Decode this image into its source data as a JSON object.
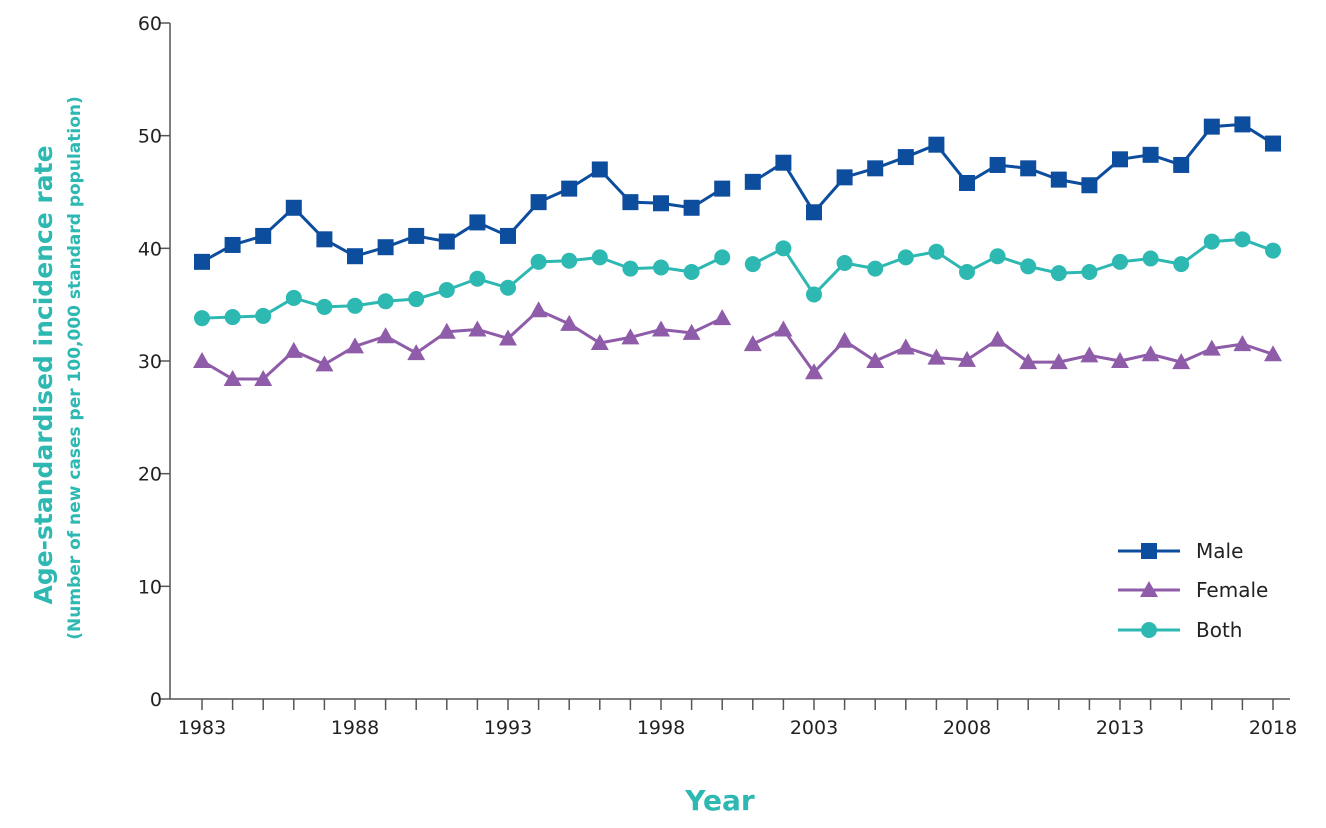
{
  "chart_data": {
    "type": "line",
    "xlabel": "Year",
    "ylabel": "Age-standardised incidence rate",
    "ylabel_sub": "(Number of new cases per 100,000 standard population)",
    "ylim": [
      0,
      60
    ],
    "yticks": [
      0,
      10,
      20,
      30,
      40,
      50,
      60
    ],
    "xlim": [
      1983,
      2018
    ],
    "xtick_labels": [
      1983,
      1988,
      1993,
      1998,
      2003,
      2008,
      2013,
      2018
    ],
    "grid": false,
    "legend_position": "bottom-right",
    "x": [
      1983,
      1984,
      1985,
      1986,
      1987,
      1988,
      1989,
      1990,
      1991,
      1992,
      1993,
      1994,
      1995,
      1996,
      1997,
      1998,
      1999,
      2000,
      2001,
      2002,
      2003,
      2004,
      2005,
      2006,
      2007,
      2008,
      2009,
      2010,
      2011,
      2012,
      2013,
      2014,
      2015,
      2016,
      2017,
      2018
    ],
    "series": [
      {
        "name": "Male",
        "marker": "square",
        "color": "#0d4d9e",
        "values": [
          38.8,
          40.3,
          41.1,
          43.6,
          40.8,
          39.3,
          40.1,
          41.1,
          40.6,
          42.3,
          41.1,
          44.1,
          45.3,
          47.0,
          44.1,
          44.0,
          43.6,
          45.3,
          45.9,
          47.6,
          43.2,
          46.3,
          47.1,
          48.1,
          49.2,
          45.8,
          47.4,
          47.1,
          46.1,
          45.6,
          47.9,
          48.3,
          47.4,
          50.8,
          51.0,
          49.3
        ],
        "break_after": 2000
      },
      {
        "name": "Female",
        "marker": "triangle",
        "color": "#8e5ca8",
        "values": [
          30.0,
          28.4,
          28.4,
          30.9,
          29.7,
          31.3,
          32.2,
          30.7,
          32.6,
          32.8,
          32.0,
          34.5,
          33.3,
          31.6,
          32.1,
          32.8,
          32.5,
          33.8,
          31.5,
          32.8,
          29.0,
          31.8,
          30.0,
          31.2,
          30.3,
          30.1,
          31.9,
          29.9,
          29.9,
          30.5,
          30.0,
          30.6,
          29.9,
          31.1,
          31.5,
          30.6
        ],
        "break_after": 2000
      },
      {
        "name": "Both",
        "marker": "circle",
        "color": "#2db8b2",
        "values": [
          33.8,
          33.9,
          34.0,
          35.6,
          34.8,
          34.9,
          35.3,
          35.5,
          36.3,
          37.3,
          36.5,
          38.8,
          38.9,
          39.2,
          38.2,
          38.3,
          37.9,
          39.2,
          38.6,
          40.0,
          35.9,
          38.7,
          38.2,
          39.2,
          39.7,
          37.9,
          39.3,
          38.4,
          37.8,
          37.9,
          38.8,
          39.1,
          38.6,
          40.6,
          40.8,
          39.8
        ],
        "break_after": 2000
      }
    ],
    "axis_title_color": "#2db8b2",
    "axis_color": "#555555"
  }
}
